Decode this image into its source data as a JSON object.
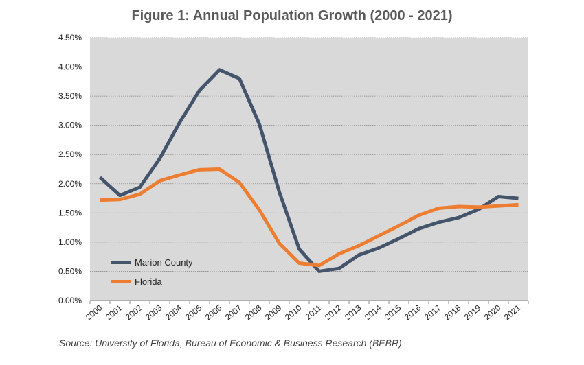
{
  "title": "Figure 1: Annual Population Growth (2000 - 2021)",
  "source": "Source: University of Florida, Bureau of Economic & Business Research (BEBR)",
  "chart_data": {
    "type": "line",
    "title": "Figure 1: Annual Population Growth (2000 - 2021)",
    "xlabel": "",
    "ylabel": "",
    "categories": [
      "2000",
      "2001",
      "2002",
      "2003",
      "2004",
      "2005",
      "2006",
      "2007",
      "2008",
      "2009",
      "2010",
      "2011",
      "2012",
      "2013",
      "2014",
      "2015",
      "2016",
      "2017",
      "2018",
      "2019",
      "2020",
      "2021"
    ],
    "ylim": [
      0,
      0.045
    ],
    "yticks": [
      0,
      0.005,
      0.01,
      0.015,
      0.02,
      0.025,
      0.03,
      0.035,
      0.04,
      0.045
    ],
    "ytick_labels": [
      "0.00%",
      "0.50%",
      "1.00%",
      "1.50%",
      "2.00%",
      "2.50%",
      "3.00%",
      "3.50%",
      "4.00%",
      "4.50%"
    ],
    "grid": true,
    "legend_position": "bottom-left",
    "series": [
      {
        "name": "Marion County",
        "color": "#44546a",
        "values": [
          0.0211,
          0.018,
          0.0194,
          0.0243,
          0.0305,
          0.036,
          0.0395,
          0.038,
          0.0302,
          0.0186,
          0.0088,
          0.005,
          0.0055,
          0.0078,
          0.009,
          0.0106,
          0.0123,
          0.0134,
          0.0142,
          0.0156,
          0.0178,
          0.0175
        ]
      },
      {
        "name": "Florida",
        "color": "#ed7d31",
        "values": [
          0.0172,
          0.0173,
          0.0182,
          0.0205,
          0.0215,
          0.0224,
          0.0225,
          0.0202,
          0.0155,
          0.0098,
          0.0064,
          0.006,
          0.008,
          0.0094,
          0.0111,
          0.0128,
          0.0146,
          0.0158,
          0.0161,
          0.016,
          0.0162,
          0.0164
        ]
      }
    ]
  }
}
